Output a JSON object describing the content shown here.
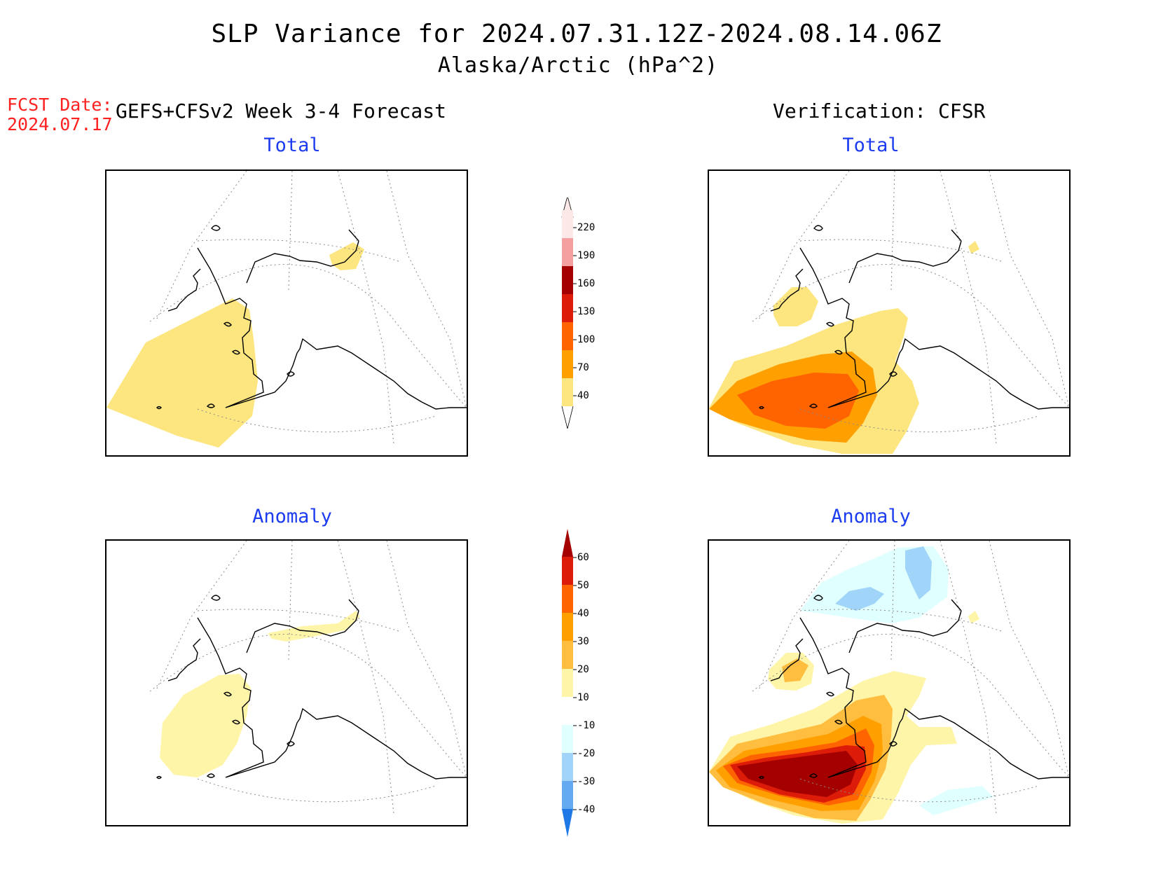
{
  "header": {
    "title": "SLP Variance for 2024.07.31.12Z-2024.08.14.06Z",
    "subtitle": "Alaska/Arctic (hPa^2)",
    "fcst_label": "FCST Date:",
    "fcst_date": "2024.07.17",
    "forecast_model": "GEFS+CFSv2 Week 3-4 Forecast",
    "verification": "Verification: CFSR"
  },
  "panels": {
    "forecast_total": {
      "title": "Total"
    },
    "verif_total": {
      "title": "Total"
    },
    "forecast_anomaly": {
      "title": "Anomaly"
    },
    "verif_anomaly": {
      "title": "Anomaly"
    }
  },
  "colorbars": {
    "total": {
      "labels": [
        "220",
        "190",
        "160",
        "130",
        "100",
        "70",
        "40"
      ],
      "colors": [
        "#fde8e8",
        "#f4a0a0",
        "#a50000",
        "#dc1c08",
        "#ff6400",
        "#ffa000",
        "#fde680"
      ]
    },
    "anomaly": {
      "labels": [
        "60",
        "50",
        "40",
        "30",
        "20",
        "10",
        "-10",
        "-20",
        "-30",
        "-40"
      ],
      "colors": [
        "#a50000",
        "#dc1c08",
        "#ff6400",
        "#ffa000",
        "#ffbe40",
        "#fff5a8",
        "#ffffff",
        "#e0ffff",
        "#a0d4f8",
        "#64aaf0",
        "#1e78e6"
      ]
    }
  },
  "colors": {
    "title_blue": "#1c3cf0",
    "fcst_red": "#ff2020"
  }
}
